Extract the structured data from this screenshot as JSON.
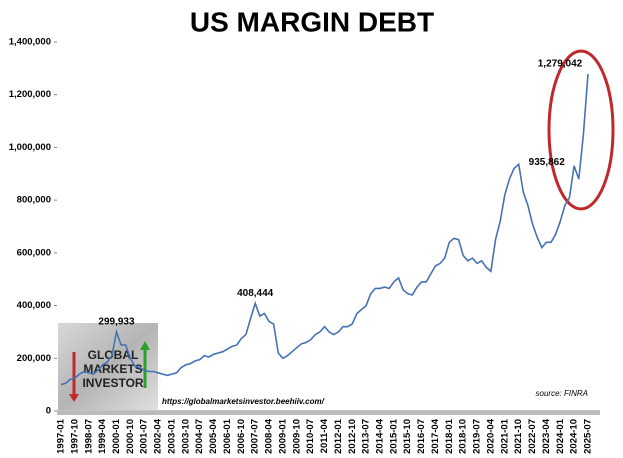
{
  "chart_data": {
    "type": "line",
    "title": "US MARGIN DEBT",
    "categories": [
      "1997-01",
      null,
      null,
      "1997-10",
      null,
      null,
      "1998-07",
      null,
      null,
      "1999-04",
      null,
      null,
      "2000-01",
      null,
      null,
      "2000-10",
      null,
      null,
      "2001-07",
      null,
      null,
      "2002-04",
      null,
      null,
      "2003-01",
      null,
      null,
      "2003-10",
      null,
      null,
      "2004-07",
      null,
      null,
      "2005-04",
      null,
      null,
      "2006-01",
      null,
      null,
      "2006-10",
      null,
      null,
      "2007-07",
      null,
      null,
      "2008-04",
      null,
      null,
      "2009-01",
      null,
      null,
      "2009-10",
      null,
      null,
      "2010-07",
      null,
      null,
      "2011-04",
      null,
      null,
      "2012-01",
      null,
      null,
      "2012-10",
      null,
      null,
      "2013-07",
      null,
      null,
      "2014-04",
      null,
      null,
      "2015-01",
      null,
      null,
      "2015-10",
      null,
      null,
      "2016-07",
      null,
      null,
      "2017-04",
      null,
      null,
      "2018-01",
      null,
      null,
      "2018-10",
      null,
      null,
      "2019-07",
      null,
      null,
      "2020-04",
      null,
      null,
      "2021-01",
      null,
      null,
      "2021-10",
      null,
      null,
      "2022-07",
      null,
      null,
      "2023-04",
      null,
      null,
      "2024-01",
      null,
      null,
      "2024-10",
      null,
      null,
      "2025-07"
    ],
    "series": [
      {
        "color": "#4572b4",
        "values": [
          100000,
          105000,
          120000,
          125000,
          140000,
          150000,
          145000,
          140000,
          155000,
          175000,
          185000,
          210000,
          299933,
          250000,
          250000,
          200000,
          170000,
          165000,
          155000,
          150000,
          150000,
          145000,
          140000,
          135000,
          140000,
          145000,
          165000,
          175000,
          180000,
          190000,
          195000,
          210000,
          205000,
          215000,
          220000,
          225000,
          235000,
          245000,
          250000,
          275000,
          290000,
          350000,
          408444,
          360000,
          370000,
          340000,
          330000,
          220000,
          200000,
          210000,
          225000,
          240000,
          255000,
          260000,
          270000,
          290000,
          300000,
          320000,
          300000,
          290000,
          300000,
          320000,
          320000,
          330000,
          370000,
          385000,
          400000,
          445000,
          465000,
          465000,
          470000,
          465000,
          490000,
          505000,
          460000,
          445000,
          440000,
          470000,
          490000,
          490000,
          520000,
          550000,
          560000,
          580000,
          640000,
          655000,
          650000,
          590000,
          570000,
          580000,
          560000,
          570000,
          545000,
          530000,
          650000,
          720000,
          820000,
          880000,
          920000,
          935862,
          830000,
          780000,
          710000,
          660000,
          620000,
          640000,
          640000,
          670000,
          720000,
          780000,
          810000,
          930000,
          880000,
          1050000,
          1279042
        ],
        "value_labels": [
          null,
          null,
          null,
          null,
          null,
          null,
          null,
          null,
          null,
          null,
          null,
          null,
          "299,933",
          null,
          null,
          null,
          null,
          null,
          null,
          null,
          null,
          null,
          null,
          null,
          null,
          null,
          null,
          null,
          null,
          null,
          null,
          null,
          null,
          null,
          null,
          null,
          null,
          null,
          null,
          null,
          null,
          null,
          "408,444",
          null,
          null,
          null,
          null,
          null,
          null,
          null,
          null,
          null,
          null,
          null,
          null,
          null,
          null,
          null,
          null,
          null,
          null,
          null,
          null,
          null,
          null,
          null,
          null,
          null,
          null,
          null,
          null,
          null,
          null,
          null,
          null,
          null,
          null,
          null,
          null,
          null,
          null,
          null,
          null,
          null,
          null,
          null,
          null,
          null,
          null,
          null,
          null,
          null,
          null,
          null,
          null,
          null,
          null,
          null,
          null,
          "935,862",
          null,
          null,
          null,
          null,
          null,
          null,
          null,
          null,
          null,
          null,
          null,
          null,
          null,
          null,
          "1,279,042"
        ]
      }
    ],
    "ylim": [
      0,
      1400000
    ],
    "yticks": [
      0,
      {
        "value": 200000,
        "label": "200,000"
      },
      {
        "value": 400000,
        "label": "400,000"
      },
      {
        "value": 600000,
        "label": "600,000"
      },
      {
        "value": 800000,
        "label": "800,000"
      },
      {
        "value": 1000000,
        "label": "1,000,000"
      },
      {
        "value": 1200000,
        "label": "1,200,000"
      },
      {
        "value": 1400000,
        "label": "1,400,000"
      }
    ],
    "url": "https://globalmarketsinvestor.beehiiv.com/",
    "source": "source: FINRA",
    "logo": [
      "GLOBAL",
      "MARKETS",
      "INVESTOR"
    ]
  }
}
